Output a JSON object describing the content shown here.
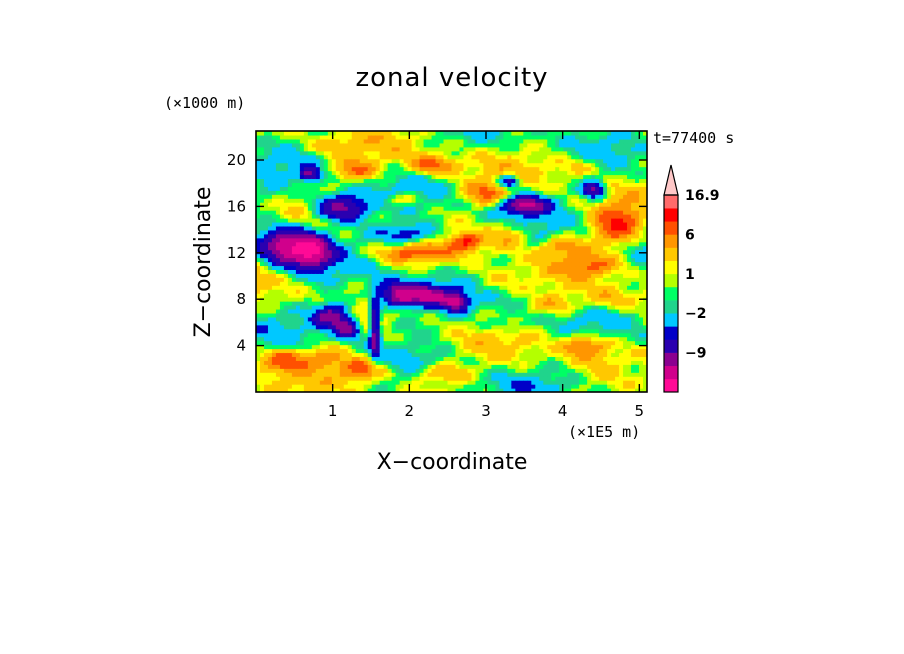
{
  "chart_data": {
    "type": "heatmap",
    "title": "zonal velocity",
    "xlabel": "X−coordinate",
    "ylabel": "Z−coordinate",
    "x_unit": "(×1E5 m)",
    "y_unit": "(×1000 m)",
    "time_label": "t=77400 s",
    "xlim": [
      0,
      5.1
    ],
    "ylim": [
      0,
      22.5
    ],
    "x_ticks": [
      1,
      2,
      3,
      4,
      5
    ],
    "y_ticks": [
      4,
      8,
      12,
      16,
      20
    ],
    "colorbar": {
      "levels": [
        -16,
        -12,
        -9,
        -6,
        -4,
        -2,
        -1,
        0,
        1,
        2,
        4,
        6,
        9,
        12,
        16.9
      ],
      "labels": [
        "16.9",
        "6",
        "1",
        "−2",
        "−9"
      ],
      "label_values": [
        16.9,
        6,
        1,
        -2,
        -9
      ],
      "colors": [
        "#ff0a96",
        "#d0008c",
        "#8b0090",
        "#2a00b0",
        "#0000c8",
        "#00c8ff",
        "#20d48c",
        "#00ff64",
        "#b4ff00",
        "#ffff00",
        "#ffc800",
        "#ff9600",
        "#ff5000",
        "#ff0000",
        "#ff6b6b",
        "#ffc8c8"
      ],
      "extend_max": true
    },
    "features": [
      {
        "x": 0.4,
        "z": 12.6,
        "rx": 0.32,
        "rz": 1.6,
        "v": -14
      },
      {
        "x": 0.75,
        "z": 12.2,
        "rx": 0.25,
        "rz": 1.4,
        "v": -13
      },
      {
        "x": 1.1,
        "z": 15.9,
        "rx": 0.35,
        "rz": 1.2,
        "v": -12
      },
      {
        "x": 0.7,
        "z": 18.8,
        "rx": 0.12,
        "rz": 0.6,
        "v": -10
      },
      {
        "x": 1.0,
        "z": 6.6,
        "rx": 0.25,
        "rz": 1.1,
        "v": -12
      },
      {
        "x": 1.2,
        "z": 5.4,
        "rx": 0.15,
        "rz": 0.8,
        "v": -10
      },
      {
        "x": 1.55,
        "z": 5.5,
        "rx": 0.07,
        "rz": 2.6,
        "v": -11
      },
      {
        "x": 1.9,
        "z": 8.4,
        "rx": 0.3,
        "rz": 1.1,
        "v": -15
      },
      {
        "x": 2.3,
        "z": 8.4,
        "rx": 0.22,
        "rz": 0.8,
        "v": -10
      },
      {
        "x": 2.6,
        "z": 7.8,
        "rx": 0.15,
        "rz": 0.8,
        "v": -12
      },
      {
        "x": 3.5,
        "z": 16.2,
        "rx": 0.3,
        "rz": 0.8,
        "v": -12
      },
      {
        "x": 3.3,
        "z": 18.2,
        "rx": 0.15,
        "rz": 0.6,
        "v": -9
      },
      {
        "x": 4.4,
        "z": 17.5,
        "rx": 0.15,
        "rz": 0.8,
        "v": -10
      },
      {
        "x": 2.0,
        "z": 13.7,
        "rx": 0.45,
        "rz": 0.9,
        "v": -7
      },
      {
        "x": 2.0,
        "z": 12.0,
        "rx": 0.5,
        "rz": 0.8,
        "v": 6
      },
      {
        "x": 1.3,
        "z": 19.2,
        "rx": 0.3,
        "rz": 0.9,
        "v": 6
      },
      {
        "x": 2.3,
        "z": 19.6,
        "rx": 0.3,
        "rz": 0.8,
        "v": 7
      },
      {
        "x": 1.9,
        "z": 16.6,
        "rx": 0.25,
        "rz": 0.6,
        "v": 4
      },
      {
        "x": 3.0,
        "z": 17.1,
        "rx": 0.3,
        "rz": 1.0,
        "v": 6
      },
      {
        "x": 2.75,
        "z": 13.0,
        "rx": 0.2,
        "rz": 0.7,
        "v": 8
      },
      {
        "x": 3.3,
        "z": 13.6,
        "rx": 0.25,
        "rz": 1.1,
        "v": 5
      },
      {
        "x": 4.4,
        "z": 11.0,
        "rx": 0.35,
        "rz": 0.9,
        "v": 5
      },
      {
        "x": 4.7,
        "z": 14.3,
        "rx": 0.3,
        "rz": 1.6,
        "v": 9
      },
      {
        "x": 4.0,
        "z": 12.6,
        "rx": 0.3,
        "rz": 0.8,
        "v": 5
      },
      {
        "x": 0.35,
        "z": 2.8,
        "rx": 0.3,
        "rz": 1.0,
        "v": 7
      },
      {
        "x": 0.9,
        "z": 3.0,
        "rx": 0.3,
        "rz": 0.9,
        "v": 5
      },
      {
        "x": 1.4,
        "z": 2.0,
        "rx": 0.3,
        "rz": 1.0,
        "v": 8
      },
      {
        "x": 2.4,
        "z": 1.6,
        "rx": 0.35,
        "rz": 0.8,
        "v": 5
      },
      {
        "x": 4.3,
        "z": 4.0,
        "rx": 0.3,
        "rz": 1.0,
        "v": 7
      },
      {
        "x": 4.6,
        "z": 8.0,
        "rx": 0.35,
        "rz": 1.0,
        "v": 4
      },
      {
        "x": 3.6,
        "z": 0.8,
        "rx": 0.5,
        "rz": 0.7,
        "v": -1
      },
      {
        "x": 3.3,
        "z": 5.8,
        "rx": 0.25,
        "rz": 0.7,
        "v": -3
      },
      {
        "x": 4.9,
        "z": 1.6,
        "rx": 0.3,
        "rz": 1.4,
        "v": -2
      },
      {
        "x": 2.0,
        "z": 6.0,
        "rx": 0.35,
        "rz": 0.9,
        "v": -2
      },
      {
        "x": 0.2,
        "z": 17.0,
        "rx": 0.25,
        "rz": 1.0,
        "v": -2
      },
      {
        "x": 4.2,
        "z": 19.5,
        "rx": 0.35,
        "rz": 0.9,
        "v": 3
      },
      {
        "x": 3.9,
        "z": 7.6,
        "rx": 0.3,
        "rz": 0.8,
        "v": 4
      },
      {
        "x": 3.1,
        "z": 9.5,
        "rx": 0.35,
        "rz": 1.2,
        "v": 3
      },
      {
        "x": 1.0,
        "z": 21.2,
        "rx": 0.4,
        "rz": 0.7,
        "v": 3
      }
    ]
  }
}
